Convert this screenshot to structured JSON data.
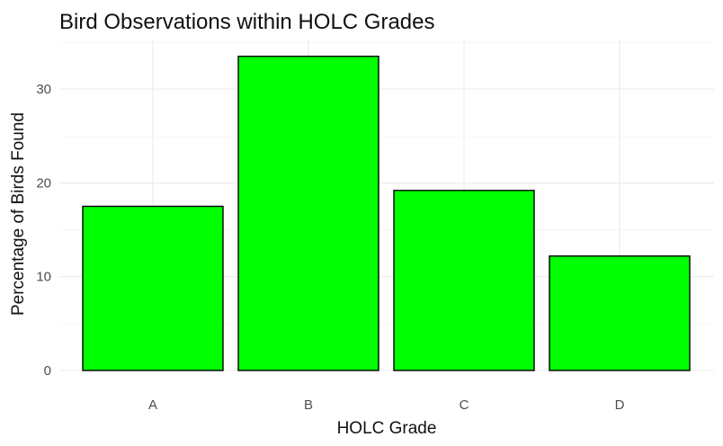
{
  "chart_data": {
    "type": "bar",
    "title": "Bird Observations within HOLC Grades",
    "xlabel": "HOLC Grade",
    "ylabel": "Percentage of Birds Found",
    "categories": [
      "A",
      "B",
      "C",
      "D"
    ],
    "values": [
      17.5,
      33.5,
      19.2,
      12.2
    ],
    "ylim": [
      0,
      35
    ],
    "yticks": [
      0,
      10,
      20,
      30
    ],
    "grid": true,
    "legend": "none",
    "bar_color": "#00ff00",
    "bar_outline": "#000000"
  }
}
